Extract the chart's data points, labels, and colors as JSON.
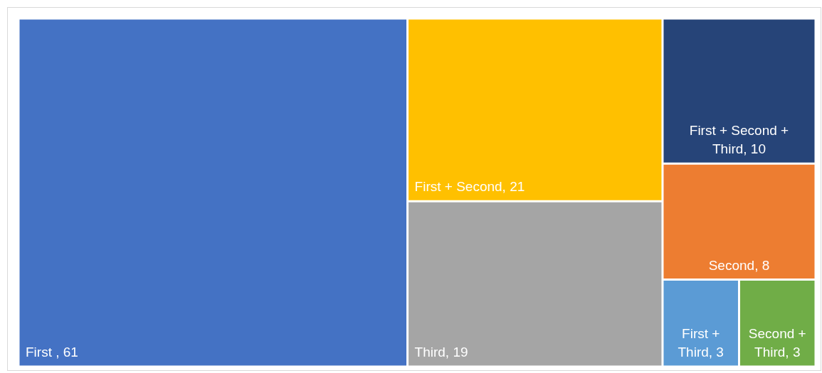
{
  "chart_data": {
    "type": "other",
    "categories": [
      "First ",
      "First + Second",
      "Third",
      "First + Second + Third",
      "Second",
      "First + Third",
      "Second + Third"
    ],
    "values": [
      61,
      21,
      19,
      10,
      8,
      3,
      3
    ],
    "value_labels": [
      ", 61",
      ", 21",
      ", 19",
      ", 10",
      ", 8",
      ", 3",
      ", 3"
    ],
    "colors": [
      "#4472c4",
      "#ffc000",
      "#a5a5a5",
      "#264478",
      "#ed7d31",
      "#5b9bd5",
      "#70ad47"
    ]
  }
}
